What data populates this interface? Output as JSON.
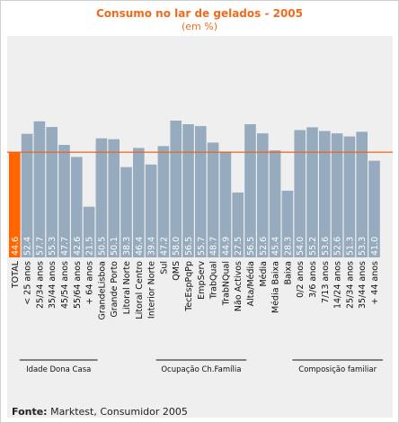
{
  "title": "Consumo no lar de gelados - 2005",
  "subtitle": "(em %)",
  "source": {
    "label": "Fonte:",
    "text": "Marktest, Consumidor 2005"
  },
  "colors": {
    "bar": "#97abbe",
    "highlight": "#ff6600",
    "reference_line": "#e8621f",
    "title": "#f26a1b",
    "plot_bg": "#efefef"
  },
  "chart_data": {
    "type": "bar",
    "title": "Consumo no lar de gelados - 2005",
    "subtitle": "(em %)",
    "xlabel": "",
    "ylabel": "",
    "ylim": [
      0,
      65
    ],
    "grid": false,
    "reference_line": 44.6,
    "highlight_category": "TOTAL",
    "categories": [
      "TOTAL",
      "< 25 anos",
      "25/34 anos",
      "35/44 anos",
      "45/54 anos",
      "55/64 anos",
      "+ 64 anos",
      "GrandeLisboa",
      "Grande Porto",
      "Litoral Norte",
      "Litoral Centro",
      "Interior Norte",
      "Sul",
      "QMS",
      "TecEspPqPp",
      "EmpServ",
      "TrabQual",
      "TrabNQual",
      "Não Activos",
      "Alta/Média",
      "Média",
      "Média Baixa",
      "Baixa",
      "0/2 anos",
      "3/6 anos",
      "7/13 anos",
      "14/24 anos",
      "25/34 anos",
      "35/44 anos",
      "+ 44 anos"
    ],
    "value_labels": [
      "44.6",
      "52.4",
      "57.7",
      "55.3",
      "47.7",
      "42.6",
      "21.5",
      "50.5",
      "50.1",
      "38.3",
      "46.4",
      "39.4",
      "47.2",
      "58.0",
      "56.5",
      "55.7",
      "48.7",
      "44.9",
      "27.5",
      "56.5",
      "52.6",
      "45.4",
      "28.3",
      "54.0",
      "55.2",
      "53.6",
      "52.6",
      "51.3",
      "53.3",
      "41.0"
    ],
    "values": [
      44.6,
      52.4,
      57.7,
      55.3,
      47.7,
      42.6,
      21.5,
      50.5,
      50.1,
      38.3,
      46.4,
      39.4,
      47.2,
      58.0,
      56.5,
      55.7,
      48.7,
      44.9,
      27.5,
      56.5,
      52.6,
      45.4,
      28.3,
      54.0,
      55.2,
      53.6,
      52.6,
      51.3,
      53.3,
      41.0
    ],
    "groups": [
      {
        "label": "Idade Dona Casa",
        "from": 1,
        "to": 6
      },
      {
        "label": "Ocupação Ch.Família",
        "from": 12,
        "to": 18
      },
      {
        "label": "Composição familiar",
        "from": 23,
        "to": 29
      }
    ]
  }
}
